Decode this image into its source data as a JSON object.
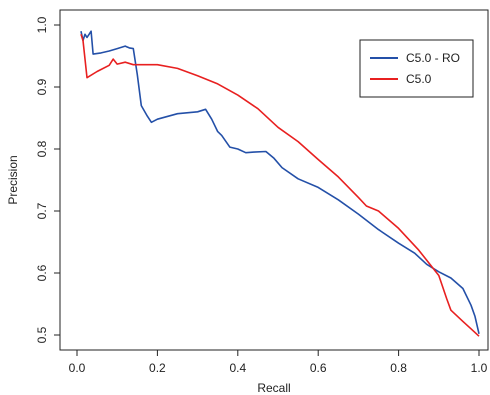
{
  "chart_data": {
    "type": "line",
    "title": "",
    "xlabel": "Recall",
    "ylabel": "Precision",
    "xlim": [
      0.0,
      1.0
    ],
    "ylim": [
      0.5,
      1.0
    ],
    "xticks": [
      "0.0",
      "0.2",
      "0.4",
      "0.6",
      "0.8",
      "1.0"
    ],
    "yticks": [
      "0.5",
      "0.6",
      "0.7",
      "0.8",
      "0.9",
      "1.0"
    ],
    "grid": false,
    "legend_position": "top-right",
    "series": [
      {
        "name": "C5.0 - RO",
        "color": "#2450a8",
        "points": [
          [
            0.01,
            0.99
          ],
          [
            0.015,
            0.975
          ],
          [
            0.02,
            0.985
          ],
          [
            0.025,
            0.98
          ],
          [
            0.03,
            0.985
          ],
          [
            0.035,
            0.99
          ],
          [
            0.04,
            0.953
          ],
          [
            0.06,
            0.955
          ],
          [
            0.08,
            0.958
          ],
          [
            0.1,
            0.962
          ],
          [
            0.12,
            0.966
          ],
          [
            0.13,
            0.963
          ],
          [
            0.14,
            0.962
          ],
          [
            0.15,
            0.92
          ],
          [
            0.16,
            0.87
          ],
          [
            0.175,
            0.853
          ],
          [
            0.185,
            0.843
          ],
          [
            0.2,
            0.848
          ],
          [
            0.25,
            0.857
          ],
          [
            0.3,
            0.86
          ],
          [
            0.32,
            0.864
          ],
          [
            0.335,
            0.848
          ],
          [
            0.35,
            0.828
          ],
          [
            0.36,
            0.822
          ],
          [
            0.38,
            0.803
          ],
          [
            0.4,
            0.8
          ],
          [
            0.42,
            0.794
          ],
          [
            0.44,
            0.795
          ],
          [
            0.47,
            0.796
          ],
          [
            0.49,
            0.785
          ],
          [
            0.51,
            0.77
          ],
          [
            0.55,
            0.752
          ],
          [
            0.6,
            0.738
          ],
          [
            0.65,
            0.718
          ],
          [
            0.7,
            0.695
          ],
          [
            0.75,
            0.67
          ],
          [
            0.8,
            0.648
          ],
          [
            0.84,
            0.632
          ],
          [
            0.87,
            0.614
          ],
          [
            0.9,
            0.602
          ],
          [
            0.93,
            0.592
          ],
          [
            0.96,
            0.575
          ],
          [
            0.98,
            0.548
          ],
          [
            0.99,
            0.53
          ],
          [
            1.0,
            0.502
          ]
        ]
      },
      {
        "name": "C5.0",
        "color": "#e82020",
        "points": [
          [
            0.01,
            0.985
          ],
          [
            0.015,
            0.975
          ],
          [
            0.02,
            0.945
          ],
          [
            0.025,
            0.915
          ],
          [
            0.05,
            0.925
          ],
          [
            0.08,
            0.935
          ],
          [
            0.09,
            0.945
          ],
          [
            0.1,
            0.937
          ],
          [
            0.12,
            0.94
          ],
          [
            0.14,
            0.936
          ],
          [
            0.2,
            0.936
          ],
          [
            0.25,
            0.93
          ],
          [
            0.3,
            0.918
          ],
          [
            0.35,
            0.905
          ],
          [
            0.4,
            0.887
          ],
          [
            0.45,
            0.865
          ],
          [
            0.5,
            0.835
          ],
          [
            0.55,
            0.812
          ],
          [
            0.6,
            0.783
          ],
          [
            0.65,
            0.755
          ],
          [
            0.7,
            0.722
          ],
          [
            0.72,
            0.708
          ],
          [
            0.75,
            0.7
          ],
          [
            0.8,
            0.672
          ],
          [
            0.85,
            0.637
          ],
          [
            0.9,
            0.596
          ],
          [
            0.92,
            0.558
          ],
          [
            0.93,
            0.54
          ],
          [
            0.96,
            0.522
          ],
          [
            0.98,
            0.51
          ],
          [
            1.0,
            0.498
          ]
        ]
      }
    ]
  }
}
